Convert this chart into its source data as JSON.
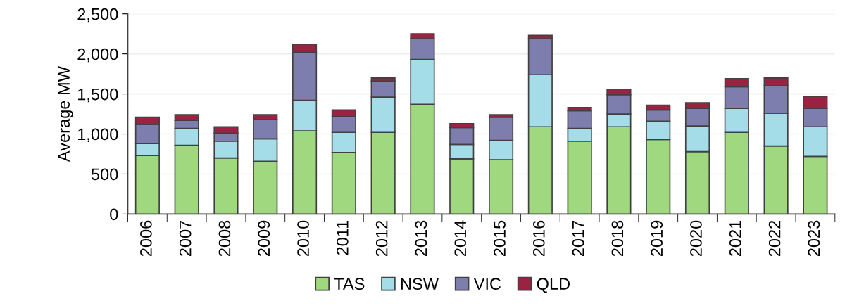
{
  "chart_data": {
    "type": "bar",
    "stacked": true,
    "ylabel": "Average MW",
    "categories": [
      "2006",
      "2007",
      "2008",
      "2009",
      "2010",
      "2011",
      "2012",
      "2013",
      "2014",
      "2015",
      "2016",
      "2017",
      "2018",
      "2019",
      "2020",
      "2021",
      "2022",
      "2023"
    ],
    "series": [
      {
        "name": "TAS",
        "color": "#a0d880",
        "values": [
          730,
          860,
          700,
          660,
          1040,
          770,
          1020,
          1370,
          690,
          680,
          1090,
          910,
          1090,
          930,
          780,
          1020,
          850,
          720
        ]
      },
      {
        "name": "NSW",
        "color": "#a4dce8",
        "values": [
          150,
          210,
          210,
          280,
          380,
          250,
          440,
          560,
          180,
          240,
          650,
          160,
          160,
          230,
          320,
          300,
          410,
          370
        ]
      },
      {
        "name": "VIC",
        "color": "#7e7eae",
        "values": [
          240,
          100,
          100,
          240,
          600,
          200,
          200,
          260,
          210,
          290,
          450,
          220,
          240,
          140,
          220,
          270,
          340,
          230
        ]
      },
      {
        "name": "QLD",
        "color": "#9b2242",
        "values": [
          90,
          70,
          80,
          60,
          100,
          80,
          40,
          60,
          50,
          30,
          40,
          40,
          70,
          60,
          70,
          100,
          100,
          150
        ]
      }
    ],
    "ylim": [
      0,
      2500
    ],
    "yticks": [
      0,
      500,
      {
        "value": 1000,
        "label": "1,000"
      },
      {
        "value": 1500,
        "label": "1,500"
      },
      {
        "value": 2000,
        "label": "2,000"
      },
      {
        "value": 2500,
        "label": "2,500"
      }
    ],
    "grid": "y",
    "legend": "bottom"
  }
}
